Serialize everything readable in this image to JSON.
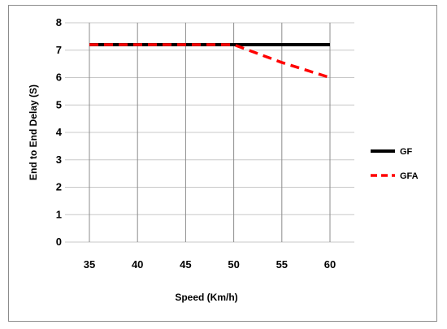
{
  "chart_data": {
    "type": "line",
    "x": [
      35,
      40,
      45,
      50,
      55,
      60
    ],
    "series": [
      {
        "name": "GF",
        "values": [
          7.2,
          7.2,
          7.2,
          7.2,
          7.2,
          7.2
        ],
        "color": "#000000",
        "style": "solid"
      },
      {
        "name": "GFA",
        "values": [
          7.2,
          7.2,
          7.2,
          7.2,
          6.55,
          6.0
        ],
        "color": "#ff0000",
        "style": "dashed"
      }
    ],
    "xlabel": "Speed (Km/h)",
    "ylabel": "End to End Delay (S)",
    "ylim": [
      0,
      8
    ],
    "yticks": [
      0,
      1,
      2,
      3,
      4,
      5,
      6,
      7,
      8
    ],
    "xticks": [
      35,
      40,
      45,
      50,
      55,
      60
    ],
    "grid": true,
    "legend": "right"
  }
}
